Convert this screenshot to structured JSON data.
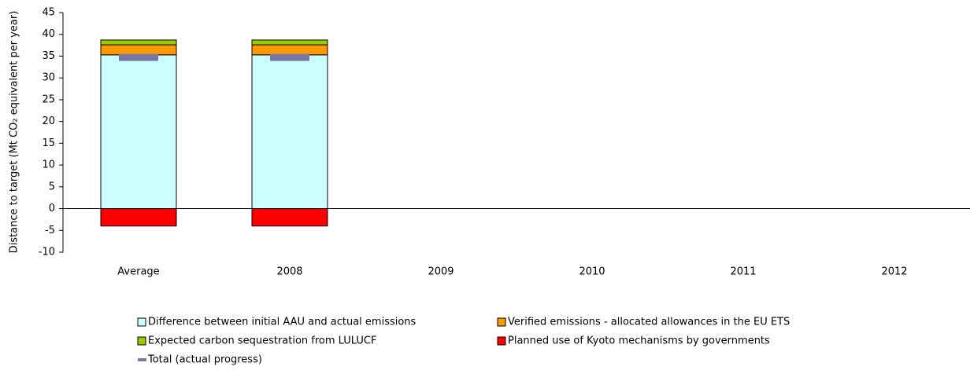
{
  "chart_data": {
    "type": "bar",
    "stacked": true,
    "y_label": "Distance to target (Mt CO₂ equivalent per year)",
    "categories": [
      "Average",
      "2008",
      "2009",
      "2010",
      "2011",
      "2012"
    ],
    "series": [
      {
        "name": "Difference between initial AAU and actual emissions",
        "color": "#ccffff",
        "values": [
          35.3,
          35.3,
          null,
          null,
          null,
          null
        ]
      },
      {
        "name": "Verified emissions - allocated allowances in the EU ETS",
        "color": "#ff9900",
        "values": [
          2.3,
          2.3,
          null,
          null,
          null,
          null
        ]
      },
      {
        "name": "Expected carbon sequestration from LULUCF",
        "color": "#99cc00",
        "values": [
          1.1,
          1.1,
          null,
          null,
          null,
          null
        ]
      },
      {
        "name": "Planned use of Kyoto mechanisms by governments",
        "color": "#ff0000",
        "values": [
          -4.0,
          -4.0,
          null,
          null,
          null,
          null
        ]
      },
      {
        "name": "Total (actual progress)",
        "color": "#7777aa",
        "type": "marker",
        "values": [
          34.7,
          34.7,
          null,
          null,
          null,
          null
        ]
      }
    ],
    "ylim": [
      -10,
      45
    ],
    "yticks": [
      -10,
      -5,
      0,
      5,
      10,
      15,
      20,
      25,
      30,
      35,
      40,
      45
    ]
  }
}
